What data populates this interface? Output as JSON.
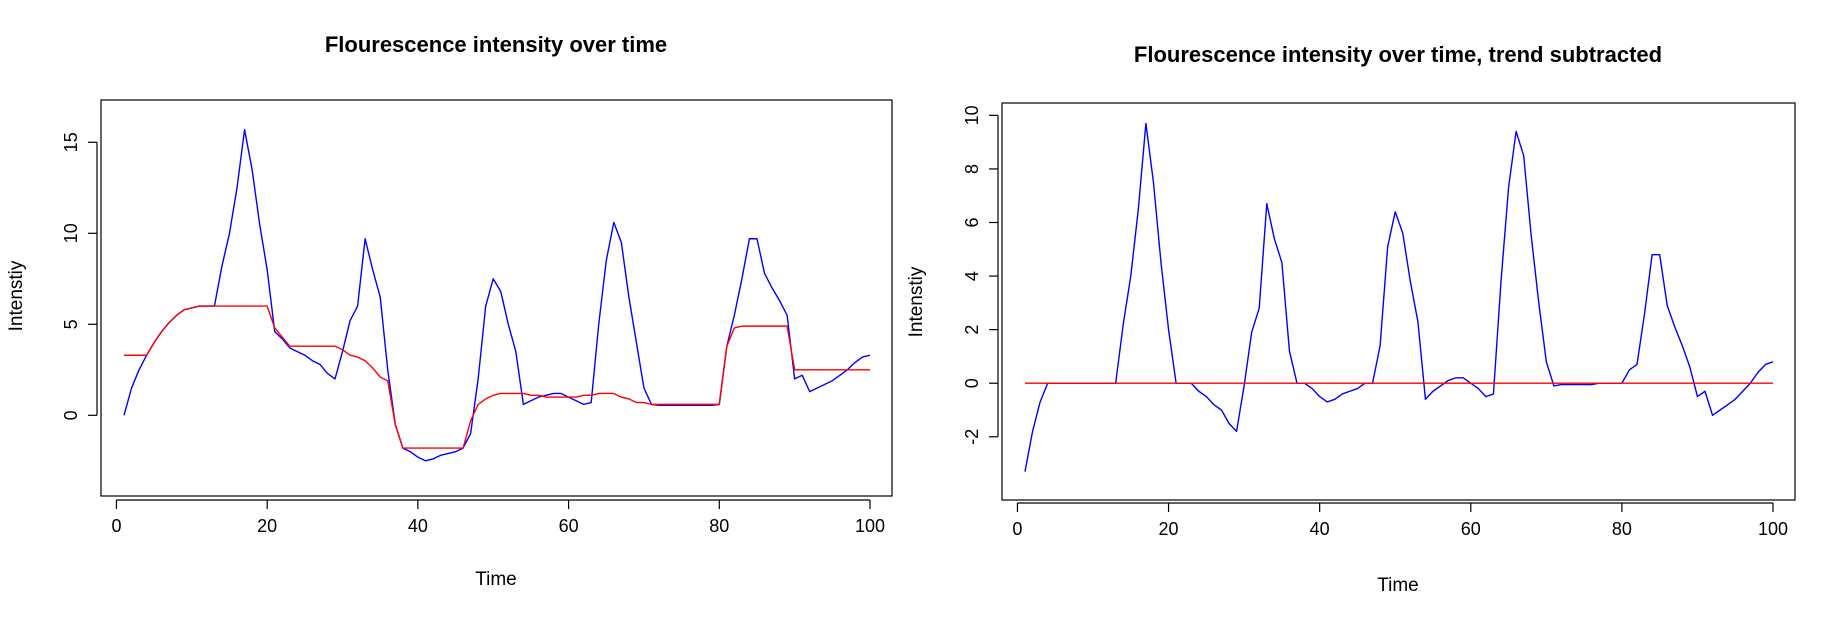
{
  "chart_data": [
    {
      "type": "line",
      "title": "Flourescence intensity over time",
      "xlabel": "Time",
      "ylabel": "Intenstiy",
      "xlim": [
        1,
        100
      ],
      "ylim": [
        -3.5,
        16.5
      ],
      "xticks": [
        "0",
        "20",
        "40",
        "60",
        "80",
        "100"
      ],
      "yticks": [
        "0",
        "5",
        "10",
        "15"
      ],
      "grid": false,
      "series": [
        {
          "color": "#0000ff",
          "x": [
            1,
            2,
            3,
            4,
            5,
            6,
            7,
            8,
            9,
            10,
            11,
            12,
            13,
            14,
            15,
            16,
            17,
            18,
            19,
            20,
            21,
            22,
            23,
            24,
            25,
            26,
            27,
            28,
            29,
            30,
            31,
            32,
            33,
            34,
            35,
            36,
            37,
            38,
            39,
            40,
            41,
            42,
            43,
            44,
            45,
            46,
            47,
            48,
            49,
            50,
            51,
            52,
            53,
            54,
            55,
            56,
            57,
            58,
            59,
            60,
            61,
            62,
            63,
            64,
            65,
            66,
            67,
            68,
            69,
            70,
            71,
            72,
            73,
            74,
            75,
            76,
            77,
            78,
            79,
            80,
            81,
            82,
            83,
            84,
            85,
            86,
            87,
            88,
            89,
            90,
            91,
            92,
            93,
            94,
            95,
            96,
            97,
            98,
            99,
            100
          ],
          "y": [
            0,
            1.5,
            2.5,
            3.3,
            4,
            4.6,
            5.1,
            5.5,
            5.8,
            5.9,
            6,
            6,
            6,
            8.2,
            10,
            12.5,
            15.7,
            13.5,
            10.5,
            8,
            4.6,
            4.2,
            3.7,
            3.5,
            3.3,
            3.0,
            2.8,
            2.3,
            2.0,
            3.5,
            5.2,
            6,
            9.7,
            8,
            6.5,
            2.5,
            -0.5,
            -1.8,
            -2,
            -2.3,
            -2.5,
            -2.4,
            -2.2,
            -2.1,
            -2,
            -1.8,
            -1.0,
            2.0,
            6.0,
            7.5,
            6.8,
            5,
            3.5,
            0.6,
            0.8,
            1.0,
            1.1,
            1.2,
            1.2,
            1.0,
            0.8,
            0.6,
            0.7,
            5,
            8.5,
            10.6,
            9.5,
            6.5,
            4,
            1.5,
            0.6,
            0.55,
            0.55,
            0.55,
            0.55,
            0.55,
            0.55,
            0.55,
            0.55,
            0.6,
            3.8,
            5.5,
            7.5,
            9.7,
            9.7,
            7.8,
            7,
            6.3,
            5.5,
            2,
            2.2,
            1.3,
            1.5,
            1.7,
            1.9,
            2.2,
            2.5,
            2.9,
            3.2,
            3.3
          ]
        },
        {
          "color": "#ff0000",
          "x": [
            1,
            2,
            3,
            4,
            5,
            6,
            7,
            8,
            9,
            10,
            11,
            12,
            13,
            14,
            15,
            16,
            17,
            18,
            19,
            20,
            21,
            22,
            23,
            24,
            25,
            26,
            27,
            28,
            29,
            30,
            31,
            32,
            33,
            34,
            35,
            36,
            37,
            38,
            39,
            40,
            41,
            42,
            43,
            44,
            45,
            46,
            47,
            48,
            49,
            50,
            51,
            52,
            53,
            54,
            55,
            56,
            57,
            58,
            59,
            60,
            61,
            62,
            63,
            64,
            65,
            66,
            67,
            68,
            69,
            70,
            71,
            72,
            73,
            74,
            75,
            76,
            77,
            78,
            79,
            80,
            81,
            82,
            83,
            84,
            85,
            86,
            87,
            88,
            89,
            90,
            91,
            92,
            93,
            94,
            95,
            96,
            97,
            98,
            99,
            100
          ],
          "y": [
            3.3,
            3.3,
            3.3,
            3.3,
            4,
            4.6,
            5.1,
            5.5,
            5.8,
            5.9,
            6,
            6,
            6,
            6,
            6,
            6,
            6,
            6,
            6,
            6,
            4.8,
            4.3,
            3.8,
            3.8,
            3.8,
            3.8,
            3.8,
            3.8,
            3.8,
            3.6,
            3.3,
            3.2,
            3.0,
            2.6,
            2.1,
            1.9,
            -0.5,
            -1.8,
            -1.8,
            -1.8,
            -1.8,
            -1.8,
            -1.8,
            -1.8,
            -1.8,
            -1.8,
            -0.3,
            0.6,
            0.9,
            1.1,
            1.2,
            1.2,
            1.2,
            1.2,
            1.1,
            1.1,
            1.0,
            1.0,
            1.0,
            1.0,
            1.0,
            1.1,
            1.1,
            1.2,
            1.2,
            1.2,
            1.0,
            0.9,
            0.7,
            0.7,
            0.6,
            0.6,
            0.6,
            0.6,
            0.6,
            0.6,
            0.6,
            0.6,
            0.6,
            0.6,
            3.8,
            4.8,
            4.9,
            4.9,
            4.9,
            4.9,
            4.9,
            4.9,
            4.9,
            2.5,
            2.5,
            2.5,
            2.5,
            2.5,
            2.5,
            2.5,
            2.5,
            2.5,
            2.5,
            2.5
          ]
        }
      ]
    },
    {
      "type": "line",
      "title": "Flourescence intensity over time, trend subtracted",
      "xlabel": "Time",
      "ylabel": "Intenstiy",
      "xlim": [
        1,
        100
      ],
      "ylim": [
        -3.8,
        10.2
      ],
      "xticks": [
        "0",
        "20",
        "40",
        "60",
        "80",
        "100"
      ],
      "yticks": [
        "-2",
        "0",
        "2",
        "4",
        "6",
        "8",
        "10"
      ],
      "grid": false,
      "series": [
        {
          "color": "#0000ff",
          "x": [
            1,
            2,
            3,
            4,
            5,
            6,
            7,
            8,
            9,
            10,
            11,
            12,
            13,
            14,
            15,
            16,
            17,
            18,
            19,
            20,
            21,
            22,
            23,
            24,
            25,
            26,
            27,
            28,
            29,
            30,
            31,
            32,
            33,
            34,
            35,
            36,
            37,
            38,
            39,
            40,
            41,
            42,
            43,
            44,
            45,
            46,
            47,
            48,
            49,
            50,
            51,
            52,
            53,
            54,
            55,
            56,
            57,
            58,
            59,
            60,
            61,
            62,
            63,
            64,
            65,
            66,
            67,
            68,
            69,
            70,
            71,
            72,
            73,
            74,
            75,
            76,
            77,
            78,
            79,
            80,
            81,
            82,
            83,
            84,
            85,
            86,
            87,
            88,
            89,
            90,
            91,
            92,
            93,
            94,
            95,
            96,
            97,
            98,
            99,
            100
          ],
          "y": [
            -3.3,
            -1.8,
            -0.7,
            0,
            0,
            0,
            0,
            0,
            0,
            0,
            0,
            0,
            0,
            2.2,
            4,
            6.5,
            9.7,
            7.5,
            4.5,
            2,
            0,
            0,
            0,
            -0.3,
            -0.5,
            -0.8,
            -1.0,
            -1.5,
            -1.8,
            -0.1,
            1.9,
            2.8,
            6.7,
            5.4,
            4.5,
            1.2,
            0,
            0,
            -0.2,
            -0.5,
            -0.7,
            -0.6,
            -0.4,
            -0.3,
            -0.2,
            0,
            0,
            1.4,
            5.1,
            6.4,
            5.6,
            3.8,
            2.3,
            -0.6,
            -0.3,
            -0.1,
            0.1,
            0.2,
            0.2,
            0,
            -0.2,
            -0.5,
            -0.4,
            3.8,
            7.3,
            9.4,
            8.5,
            5.5,
            3,
            0.8,
            -0.1,
            -0.05,
            -0.05,
            -0.05,
            -0.05,
            -0.05,
            0,
            0,
            0,
            0,
            0.5,
            0.7,
            2.6,
            4.8,
            4.8,
            2.9,
            2.1,
            1.4,
            0.6,
            -0.5,
            -0.3,
            -1.2,
            -1.0,
            -0.8,
            -0.6,
            -0.3,
            0,
            0.4,
            0.7,
            0.8
          ]
        },
        {
          "color": "#ff0000",
          "x": [
            1,
            100
          ],
          "y": [
            0,
            0
          ]
        }
      ]
    }
  ],
  "colors": {
    "series_blue": "#0000ff",
    "series_red": "#ff0000",
    "axis": "#000000"
  }
}
